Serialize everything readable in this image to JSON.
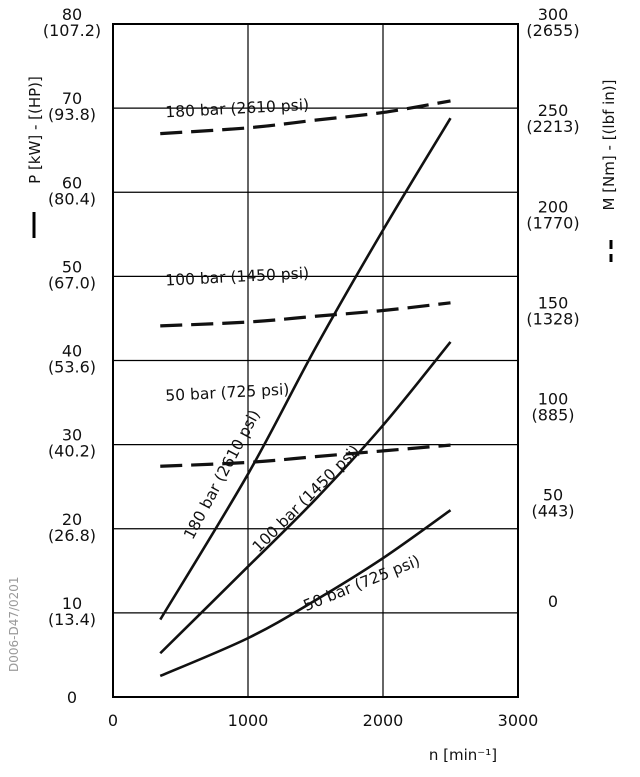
{
  "chart_data": {
    "type": "line",
    "x_axis": {
      "label": "n [min⁻¹]",
      "range": [
        0,
        3000
      ],
      "ticks": [
        "0",
        "1000",
        "2000",
        "3000"
      ]
    },
    "y_left_axis": {
      "label": "P [kW] - [(HP)]",
      "range": [
        0,
        80
      ],
      "ticks": [
        {
          "value": 0,
          "label": "0",
          "alt": ""
        },
        {
          "value": 10,
          "label": "10",
          "alt": "(13.4)"
        },
        {
          "value": 20,
          "label": "20",
          "alt": "(26.8)"
        },
        {
          "value": 30,
          "label": "30",
          "alt": "(40.2)"
        },
        {
          "value": 40,
          "label": "40",
          "alt": "(53.6)"
        },
        {
          "value": 50,
          "label": "50",
          "alt": "(67.0)"
        },
        {
          "value": 60,
          "label": "60",
          "alt": "(80.4)"
        },
        {
          "value": 70,
          "label": "70",
          "alt": "(93.8)"
        },
        {
          "value": 80,
          "label": "80",
          "alt": "(107.2)"
        }
      ]
    },
    "y_right_axis": {
      "label": "M [Nm] - [(lbf in)]",
      "range": [
        -50,
        300
      ],
      "ticks": [
        {
          "value": 0,
          "label": "0",
          "alt": ""
        },
        {
          "value": 50,
          "label": "50",
          "alt": "(443)"
        },
        {
          "value": 100,
          "label": "100",
          "alt": "(885)"
        },
        {
          "value": 150,
          "label": "150",
          "alt": "(1328)"
        },
        {
          "value": 200,
          "label": "200",
          "alt": "(1770)"
        },
        {
          "value": 250,
          "label": "250",
          "alt": "(2213)"
        },
        {
          "value": 300,
          "label": "300",
          "alt": "(2655)"
        }
      ]
    },
    "grid": true,
    "power_series": [
      {
        "name": "180 bar (2610 psi)",
        "x": [
          350,
          1000,
          1500,
          2000,
          2500
        ],
        "y": [
          9.2,
          26.5,
          41.5,
          55.5,
          68.8
        ]
      },
      {
        "name": "100 bar (1450 psi)",
        "x": [
          350,
          1000,
          1500,
          2000,
          2500
        ],
        "y": [
          5.2,
          15.5,
          23.5,
          32.3,
          42.2
        ]
      },
      {
        "name": "50 bar (725 psi)",
        "x": [
          350,
          1000,
          1500,
          2000,
          2500
        ],
        "y": [
          2.5,
          7.0,
          11.5,
          16.5,
          22.2
        ]
      }
    ],
    "torque_series": [
      {
        "name": "180 bar (2610 psi)",
        "x": [
          350,
          1000,
          1500,
          2000,
          2500
        ],
        "y": [
          243,
          246,
          250,
          254,
          260
        ]
      },
      {
        "name": "100 bar (1450 psi)",
        "x": [
          350,
          1000,
          1500,
          2000,
          2500
        ],
        "y": [
          143,
          145,
          148,
          151,
          155
        ]
      },
      {
        "name": "50 bar (725 psi)",
        "x": [
          350,
          1000,
          1500,
          2000,
          2500
        ],
        "y": [
          70,
          72,
          75,
          78,
          81
        ]
      }
    ],
    "watermark": "D006-D47/0201"
  }
}
